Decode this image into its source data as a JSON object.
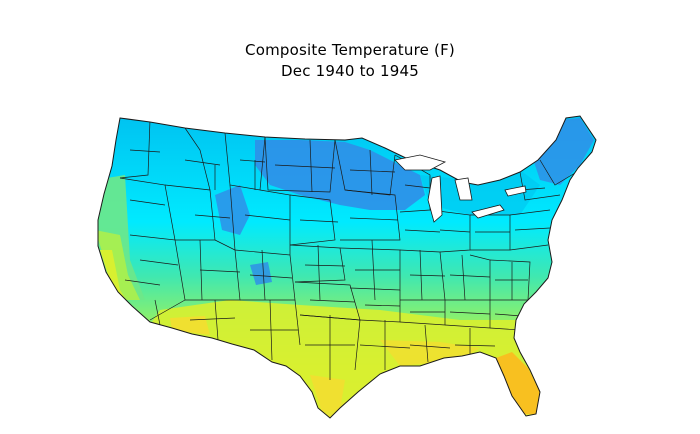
{
  "map": {
    "title": "Composite Temperature (F)",
    "subtitle": "Dec 1940 to 1945",
    "region": "contiguous United States climate divisions",
    "colors": {
      "coldest": "#2f8fe8",
      "cold": "#00c8f0",
      "cool": "#00ecff",
      "mild": "#3ee8b8",
      "moderate": "#7ef07a",
      "warm": "#c8f03a",
      "hot": "#f0e030",
      "hottest": "#f8c020",
      "division_lines": "#1a1a1a",
      "lakes": "#ffffff"
    }
  }
}
